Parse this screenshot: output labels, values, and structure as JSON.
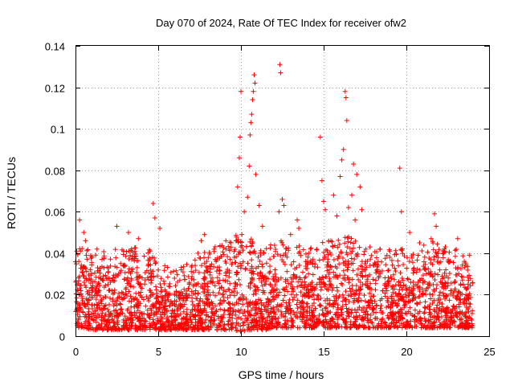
{
  "chart_data": {
    "type": "scatter",
    "title": "Day 070 of 2024, Rate Of TEC Index for receiver ofw2",
    "xlabel": "GPS time / hours",
    "ylabel": "ROTI / TECUs",
    "xlim": [
      0,
      25
    ],
    "ylim": [
      0,
      0.14
    ],
    "xticks": [
      "0",
      "5",
      "10",
      "15",
      "20",
      "25"
    ],
    "yticks": [
      "0",
      "0.02",
      "0.04",
      "0.06",
      "0.08",
      "0.1",
      "0.12",
      "0.14"
    ],
    "grid": true,
    "marker": "+",
    "color": "#ff0000",
    "series": [
      {
        "name": "ROTI",
        "points": [
          [
            0.2,
            0.036
          ],
          [
            0.3,
            0.041
          ],
          [
            0.25,
            0.056
          ],
          [
            0.5,
            0.05
          ],
          [
            0.6,
            0.046
          ],
          [
            0.4,
            0.031
          ],
          [
            1.3,
            0.042
          ],
          [
            1.6,
            0.037
          ],
          [
            2.5,
            0.053
          ],
          [
            2.9,
            0.041
          ],
          [
            3.2,
            0.05
          ],
          [
            3.8,
            0.047
          ],
          [
            4.5,
            0.041
          ],
          [
            4.7,
            0.064
          ],
          [
            4.8,
            0.057
          ],
          [
            5.1,
            0.052
          ],
          [
            5.4,
            0.034
          ],
          [
            6.5,
            0.031
          ],
          [
            7.4,
            0.04
          ],
          [
            7.6,
            0.046
          ],
          [
            7.8,
            0.049
          ],
          [
            8.5,
            0.036
          ],
          [
            9.1,
            0.042
          ],
          [
            9.6,
            0.038
          ],
          [
            9.8,
            0.072
          ],
          [
            9.9,
            0.086
          ],
          [
            9.95,
            0.096
          ],
          [
            10.0,
            0.118
          ],
          [
            10.2,
            0.06
          ],
          [
            10.4,
            0.067
          ],
          [
            10.5,
            0.082
          ],
          [
            10.55,
            0.097
          ],
          [
            10.6,
            0.103
          ],
          [
            10.65,
            0.107
          ],
          [
            10.7,
            0.114
          ],
          [
            10.75,
            0.118
          ],
          [
            10.8,
            0.126
          ],
          [
            10.85,
            0.122
          ],
          [
            10.9,
            0.078
          ],
          [
            11.1,
            0.063
          ],
          [
            11.3,
            0.053
          ],
          [
            11.8,
            0.044
          ],
          [
            12.3,
            0.06
          ],
          [
            12.35,
            0.131
          ],
          [
            12.4,
            0.127
          ],
          [
            12.5,
            0.066
          ],
          [
            12.6,
            0.063
          ],
          [
            13.0,
            0.049
          ],
          [
            13.4,
            0.056
          ],
          [
            13.5,
            0.052
          ],
          [
            14.2,
            0.042
          ],
          [
            14.8,
            0.096
          ],
          [
            14.9,
            0.075
          ],
          [
            15.0,
            0.065
          ],
          [
            15.1,
            0.061
          ],
          [
            15.6,
            0.068
          ],
          [
            15.8,
            0.058
          ],
          [
            16.0,
            0.077
          ],
          [
            16.1,
            0.085
          ],
          [
            16.2,
            0.09
          ],
          [
            16.3,
            0.118
          ],
          [
            16.35,
            0.115
          ],
          [
            16.4,
            0.104
          ],
          [
            16.5,
            0.062
          ],
          [
            16.7,
            0.068
          ],
          [
            16.8,
            0.083
          ],
          [
            16.9,
            0.056
          ],
          [
            17.0,
            0.078
          ],
          [
            17.2,
            0.072
          ],
          [
            17.3,
            0.061
          ],
          [
            17.8,
            0.043
          ],
          [
            18.4,
            0.042
          ],
          [
            19.0,
            0.041
          ],
          [
            19.6,
            0.081
          ],
          [
            19.7,
            0.06
          ],
          [
            20.2,
            0.05
          ],
          [
            20.8,
            0.045
          ],
          [
            21.5,
            0.047
          ],
          [
            21.7,
            0.059
          ],
          [
            21.8,
            0.053
          ],
          [
            22.3,
            0.041
          ],
          [
            23.1,
            0.047
          ],
          [
            23.5,
            0.036
          ],
          [
            23.8,
            0.039
          ]
        ],
        "envelope": {
          "x": [
            0,
            0.5,
            1,
            1.5,
            2,
            2.5,
            3,
            3.5,
            4,
            4.5,
            5,
            5.5,
            6,
            6.5,
            7,
            7.5,
            8,
            8.5,
            9,
            9.5,
            10,
            10.5,
            11,
            11.5,
            12,
            12.5,
            13,
            13.5,
            14,
            14.5,
            15,
            15.5,
            16,
            16.5,
            17,
            17.5,
            18,
            18.5,
            19,
            19.5,
            20,
            20.5,
            21,
            21.5,
            22,
            22.5,
            23,
            23.5,
            24
          ],
          "low": [
            0.004,
            0.004,
            0.003,
            0.003,
            0.003,
            0.003,
            0.003,
            0.003,
            0.003,
            0.003,
            0.003,
            0.003,
            0.003,
            0.003,
            0.003,
            0.003,
            0.003,
            0.003,
            0.003,
            0.003,
            0.002,
            0.003,
            0.003,
            0.003,
            0.004,
            0.004,
            0.004,
            0.004,
            0.004,
            0.004,
            0.004,
            0.004,
            0.004,
            0.004,
            0.004,
            0.004,
            0.004,
            0.004,
            0.004,
            0.004,
            0.004,
            0.004,
            0.004,
            0.004,
            0.004,
            0.004,
            0.004,
            0.004,
            0.004
          ],
          "high": [
            0.03,
            0.034,
            0.027,
            0.03,
            0.028,
            0.032,
            0.03,
            0.032,
            0.028,
            0.03,
            0.022,
            0.022,
            0.02,
            0.022,
            0.024,
            0.028,
            0.03,
            0.032,
            0.034,
            0.036,
            0.038,
            0.036,
            0.032,
            0.03,
            0.032,
            0.036,
            0.03,
            0.032,
            0.03,
            0.032,
            0.034,
            0.034,
            0.036,
            0.036,
            0.034,
            0.03,
            0.03,
            0.03,
            0.03,
            0.032,
            0.03,
            0.032,
            0.033,
            0.035,
            0.033,
            0.032,
            0.03,
            0.026,
            0.02
          ]
        }
      }
    ]
  }
}
